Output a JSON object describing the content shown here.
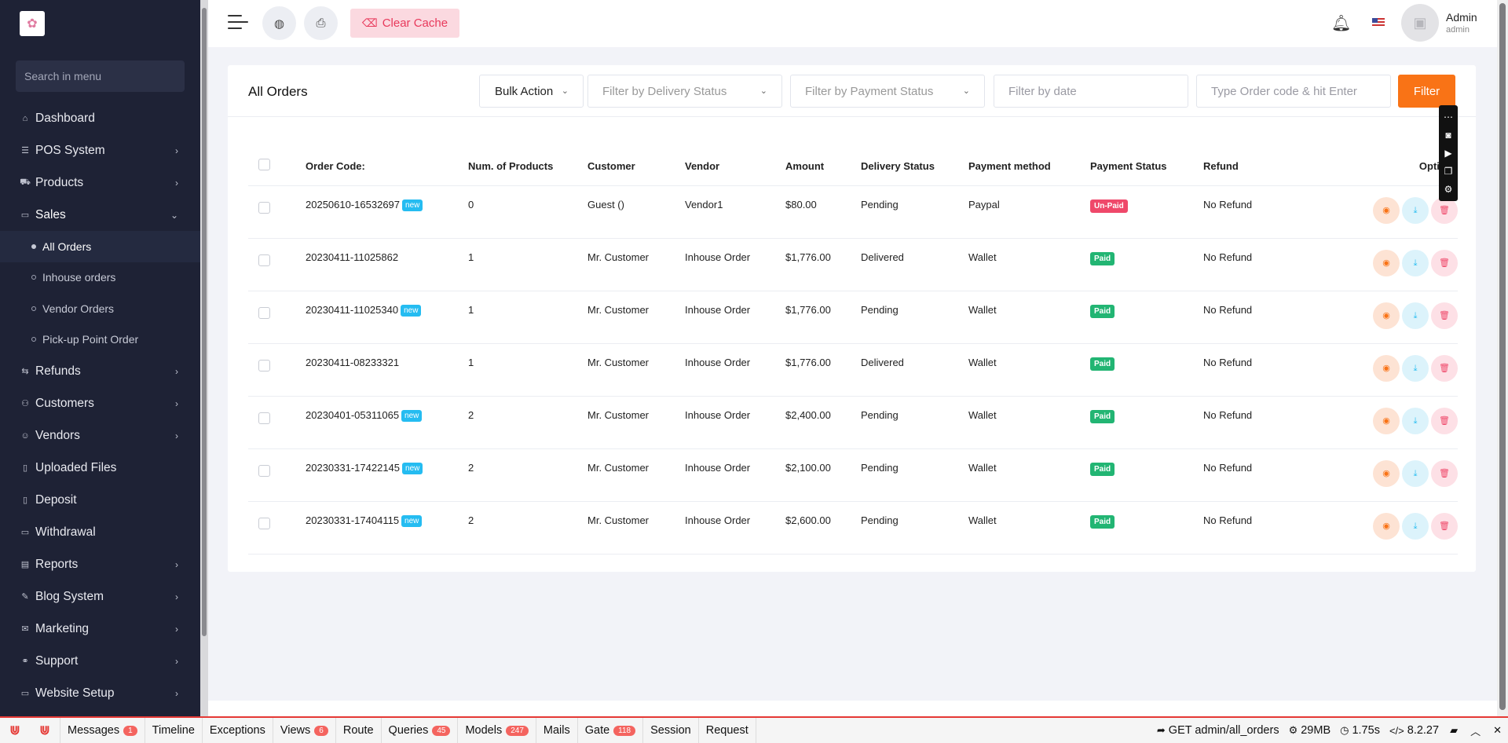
{
  "sidebar": {
    "search_placeholder": "Search in menu",
    "items": [
      {
        "label": "Dashboard",
        "icon": "dashboard-icon",
        "glyph": "⌂"
      },
      {
        "label": "POS System",
        "icon": "pos-icon",
        "glyph": "☰"
      },
      {
        "label": "Products",
        "icon": "cart-icon",
        "glyph": "⛟"
      },
      {
        "label": "Sales",
        "icon": "sales-icon",
        "glyph": "▭"
      },
      {
        "label": "Refunds",
        "icon": "refund-icon",
        "glyph": "⇆"
      },
      {
        "label": "Customers",
        "icon": "customers-icon",
        "glyph": "⚇"
      },
      {
        "label": "Vendors",
        "icon": "vendor-icon",
        "glyph": "☺"
      },
      {
        "label": "Uploaded Files",
        "icon": "files-icon",
        "glyph": "▯"
      },
      {
        "label": "Deposit",
        "icon": "deposit-icon",
        "glyph": "▯"
      },
      {
        "label": "Withdrawal",
        "icon": "withdrawal-icon",
        "glyph": "▭"
      },
      {
        "label": "Reports",
        "icon": "reports-icon",
        "glyph": "▤"
      },
      {
        "label": "Blog System",
        "icon": "blog-icon",
        "glyph": "✎"
      },
      {
        "label": "Marketing",
        "icon": "marketing-icon",
        "glyph": "✉"
      },
      {
        "label": "Support",
        "icon": "support-icon",
        "glyph": "⚭"
      },
      {
        "label": "Website Setup",
        "icon": "website-icon",
        "glyph": "▭"
      }
    ],
    "sales_sub": [
      "All Orders",
      "Inhouse orders",
      "Vendor Orders",
      "Pick-up Point Order"
    ]
  },
  "topbar": {
    "clear_cache_label": "Clear Cache",
    "admin_name": "Admin",
    "admin_role": "admin"
  },
  "orders": {
    "title": "All Orders",
    "bulk_action_label": "Bulk Action",
    "delivery_filter_placeholder": "Filter by Delivery Status",
    "payment_filter_placeholder": "Filter by Payment Status",
    "date_filter_placeholder": "Filter by date",
    "search_placeholder": "Type Order code & hit Enter",
    "filter_button": "Filter",
    "columns": [
      "Order Code:",
      "Num. of Products",
      "Customer",
      "Vendor",
      "Amount",
      "Delivery Status",
      "Payment method",
      "Payment Status",
      "Refund",
      "Options"
    ],
    "new_label": "new",
    "rows": [
      {
        "code": "20250610-16532697",
        "is_new": true,
        "products": "0",
        "customer": "Guest ()",
        "vendor": "Vendor1",
        "amount": "$80.00",
        "delivery": "Pending",
        "method": "Paypal",
        "payment": "Un-Paid",
        "refund": "No Refund"
      },
      {
        "code": "20230411-11025862",
        "is_new": false,
        "products": "1",
        "customer": "Mr. Customer",
        "vendor": "Inhouse Order",
        "amount": "$1,776.00",
        "delivery": "Delivered",
        "method": "Wallet",
        "payment": "Paid",
        "refund": "No Refund"
      },
      {
        "code": "20230411-11025340",
        "is_new": true,
        "products": "1",
        "customer": "Mr. Customer",
        "vendor": "Inhouse Order",
        "amount": "$1,776.00",
        "delivery": "Pending",
        "method": "Wallet",
        "payment": "Paid",
        "refund": "No Refund"
      },
      {
        "code": "20230411-08233321",
        "is_new": false,
        "products": "1",
        "customer": "Mr. Customer",
        "vendor": "Inhouse Order",
        "amount": "$1,776.00",
        "delivery": "Delivered",
        "method": "Wallet",
        "payment": "Paid",
        "refund": "No Refund"
      },
      {
        "code": "20230401-05311065",
        "is_new": true,
        "products": "2",
        "customer": "Mr. Customer",
        "vendor": "Inhouse Order",
        "amount": "$2,400.00",
        "delivery": "Pending",
        "method": "Wallet",
        "payment": "Paid",
        "refund": "No Refund"
      },
      {
        "code": "20230331-17422145",
        "is_new": true,
        "products": "2",
        "customer": "Mr. Customer",
        "vendor": "Inhouse Order",
        "amount": "$2,100.00",
        "delivery": "Pending",
        "method": "Wallet",
        "payment": "Paid",
        "refund": "No Refund"
      },
      {
        "code": "20230331-17404115",
        "is_new": true,
        "products": "2",
        "customer": "Mr. Customer",
        "vendor": "Inhouse Order",
        "amount": "$2,600.00",
        "delivery": "Pending",
        "method": "Wallet",
        "payment": "Paid",
        "refund": "No Refund"
      }
    ]
  },
  "debugbar": {
    "tabs": [
      {
        "label": "Messages",
        "count": "1"
      },
      {
        "label": "Timeline",
        "count": ""
      },
      {
        "label": "Exceptions",
        "count": ""
      },
      {
        "label": "Views",
        "count": "6"
      },
      {
        "label": "Route",
        "count": ""
      },
      {
        "label": "Queries",
        "count": "45"
      },
      {
        "label": "Models",
        "count": "247"
      },
      {
        "label": "Mails",
        "count": ""
      },
      {
        "label": "Gate",
        "count": "118"
      },
      {
        "label": "Session",
        "count": ""
      },
      {
        "label": "Request",
        "count": ""
      }
    ],
    "request": "GET admin/all_orders",
    "memory": "29MB",
    "time": "1.75s",
    "php_version": "8.2.27"
  },
  "colors": {
    "sidebar_bg": "#1e2235",
    "accent": "#f97316",
    "paid": "#22b573",
    "unpaid": "#ef486a",
    "new_badge": "#25bcf1"
  }
}
